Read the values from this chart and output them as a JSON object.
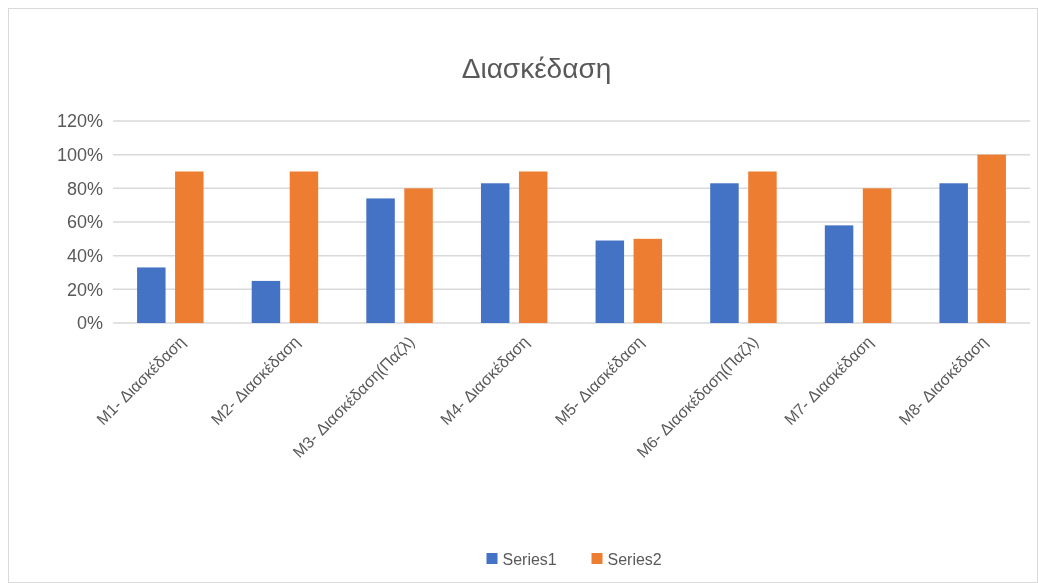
{
  "chart_data": {
    "type": "bar",
    "title": "Διασκέδαση",
    "categories": [
      "M1- Διασκέδαση",
      "M2- Διασκέδαση",
      "M3- Διασκέδαση(Παζλ)",
      "M4- Διασκέδαση",
      "M5- Διασκέδαση",
      "M6- Διασκέδαση(Παζλ)",
      "M7- Διασκέδαση",
      "M8- Διασκέδαση"
    ],
    "series": [
      {
        "name": "Series1",
        "color": "#4472c4",
        "values": [
          33,
          25,
          74,
          83,
          49,
          83,
          58,
          83
        ]
      },
      {
        "name": "Series2",
        "color": "#ed7d31",
        "values": [
          90,
          90,
          80,
          90,
          50,
          90,
          80,
          100
        ]
      }
    ],
    "ylim": [
      0,
      120
    ],
    "yticks": [
      {
        "value": 0,
        "label": "0%"
      },
      {
        "value": 20,
        "label": "20%"
      },
      {
        "value": 40,
        "label": "40%"
      },
      {
        "value": 60,
        "label": "60%"
      },
      {
        "value": 80,
        "label": "80%"
      },
      {
        "value": 100,
        "label": "100%"
      },
      {
        "value": 120,
        "label": "120%"
      }
    ],
    "grid": "y",
    "legend": "bottom"
  }
}
